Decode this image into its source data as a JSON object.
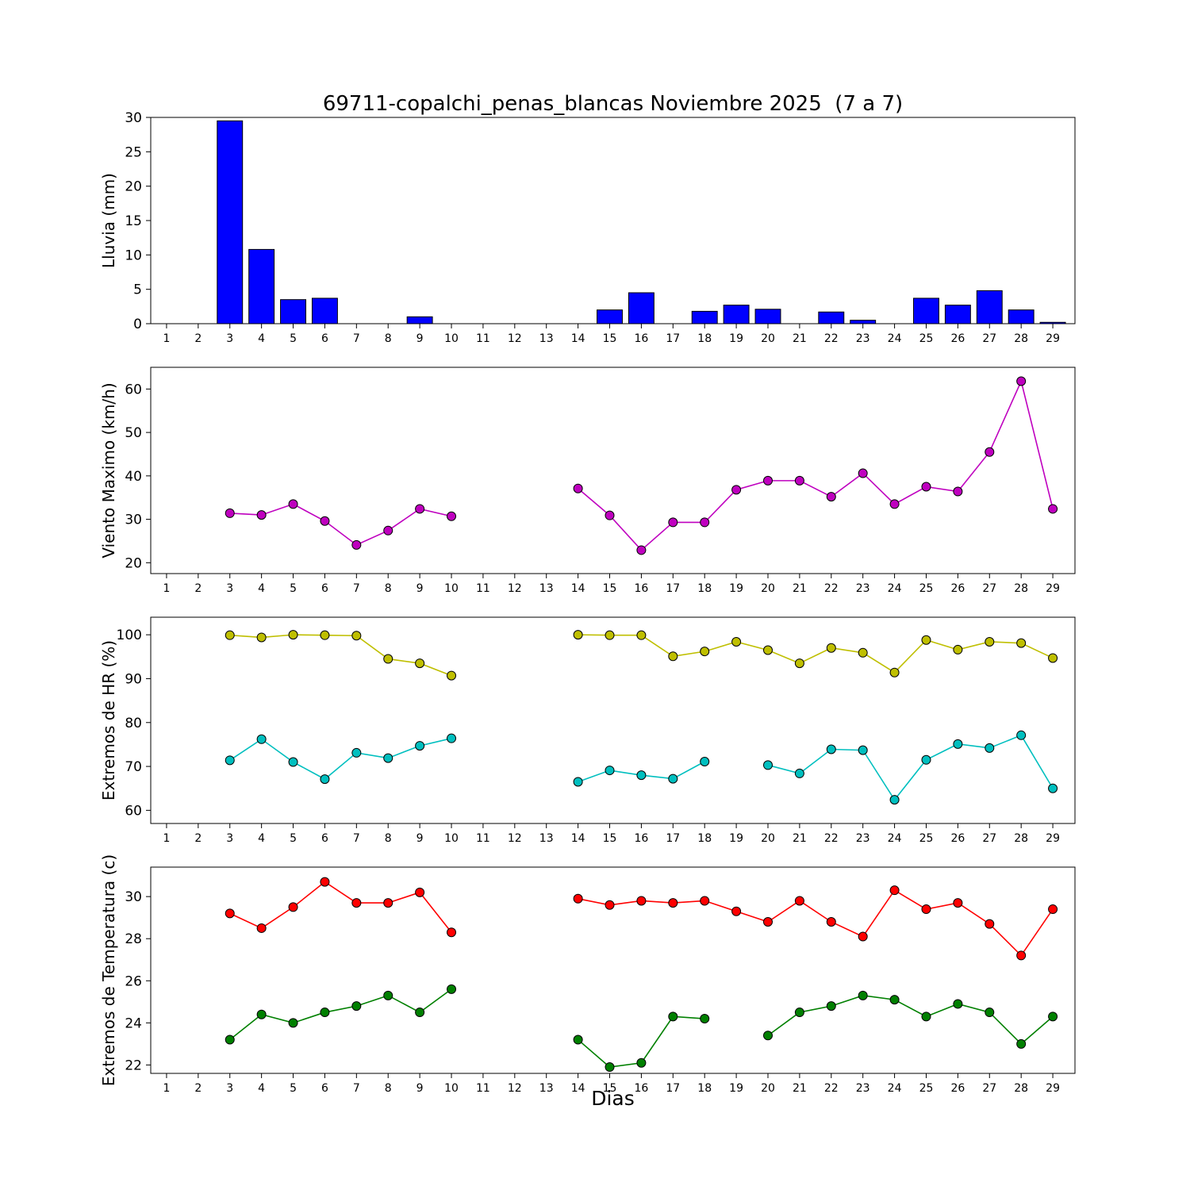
{
  "title": "69711-copalchi_penas_blancas Noviembre 2025  (7 a 7)",
  "xlabel": "Dias",
  "days": [
    1,
    2,
    3,
    4,
    5,
    6,
    7,
    8,
    9,
    10,
    11,
    12,
    13,
    14,
    15,
    16,
    17,
    18,
    19,
    20,
    21,
    22,
    23,
    24,
    25,
    26,
    27,
    28,
    29
  ],
  "xlim": [
    0.5,
    29.7
  ],
  "chart_data": [
    {
      "type": "bar",
      "ylabel": "Lluvia (mm)",
      "ylim": [
        0,
        30
      ],
      "yticks": [
        0,
        5,
        10,
        15,
        20,
        25,
        30
      ],
      "bar_color": "#0000ff",
      "bar_edge_color": "#000000",
      "values": [
        0,
        0,
        29.5,
        10.8,
        3.5,
        3.7,
        0,
        0,
        1.0,
        0,
        0,
        0,
        0,
        0,
        2.0,
        4.5,
        0,
        1.8,
        2.7,
        2.1,
        0,
        1.7,
        0.5,
        0,
        3.7,
        2.7,
        4.8,
        2.0,
        0.2
      ]
    },
    {
      "type": "line",
      "ylabel": "Viento Maximo (km/h)",
      "ylim": [
        17.5,
        65
      ],
      "yticks": [
        20,
        30,
        40,
        50,
        60
      ],
      "series": [
        {
          "name": "viento-maximo",
          "color": "#bf00bf",
          "values": [
            null,
            null,
            31.4,
            31.0,
            33.5,
            29.6,
            24.1,
            27.4,
            32.4,
            30.7,
            null,
            null,
            null,
            37.1,
            30.9,
            22.9,
            29.3,
            29.3,
            36.8,
            38.9,
            38.9,
            35.2,
            40.6,
            33.5,
            37.5,
            36.4,
            45.5,
            61.8,
            32.4
          ]
        }
      ]
    },
    {
      "type": "line",
      "ylabel": "Extremos de HR (%)",
      "ylim": [
        57,
        104
      ],
      "yticks": [
        60,
        70,
        80,
        90,
        100
      ],
      "series": [
        {
          "name": "hr-maxima",
          "color": "#bfbf00",
          "values": [
            null,
            null,
            99.9,
            99.4,
            100,
            99.9,
            99.8,
            94.5,
            93.5,
            90.7,
            null,
            null,
            null,
            100,
            99.9,
            99.9,
            95.1,
            96.2,
            98.4,
            96.5,
            93.5,
            97.0,
            95.9,
            91.4,
            98.8,
            96.6,
            98.4,
            98.1,
            94.7
          ]
        },
        {
          "name": "hr-minima",
          "color": "#00bfbf",
          "values": [
            null,
            null,
            71.4,
            76.2,
            71.0,
            67.1,
            73.1,
            71.9,
            74.7,
            76.4,
            null,
            null,
            null,
            66.5,
            69.1,
            68.0,
            67.2,
            71.1,
            null,
            70.3,
            68.4,
            73.9,
            73.7,
            62.4,
            71.5,
            75.1,
            74.2,
            77.1,
            65.0
          ]
        }
      ]
    },
    {
      "type": "line",
      "ylabel": "Extremos de Temperatura (c)",
      "ylim": [
        21.6,
        31.4
      ],
      "yticks": [
        22,
        24,
        26,
        28,
        30
      ],
      "series": [
        {
          "name": "temperatura-maxima",
          "color": "#ff0000",
          "values": [
            null,
            null,
            29.2,
            28.5,
            29.5,
            30.7,
            29.7,
            29.7,
            30.2,
            28.3,
            null,
            null,
            null,
            29.9,
            29.6,
            29.8,
            29.7,
            29.8,
            29.3,
            28.8,
            29.8,
            28.8,
            28.1,
            30.3,
            29.4,
            29.7,
            28.7,
            27.2,
            29.4
          ]
        },
        {
          "name": "temperatura-minima",
          "color": "#008000",
          "values": [
            null,
            null,
            23.2,
            24.4,
            24.0,
            24.5,
            24.8,
            25.3,
            24.5,
            25.6,
            null,
            null,
            null,
            23.2,
            21.9,
            22.1,
            24.3,
            24.2,
            null,
            23.4,
            24.5,
            24.8,
            25.3,
            25.1,
            24.3,
            24.9,
            24.5,
            23.0,
            24.3
          ]
        }
      ]
    }
  ]
}
